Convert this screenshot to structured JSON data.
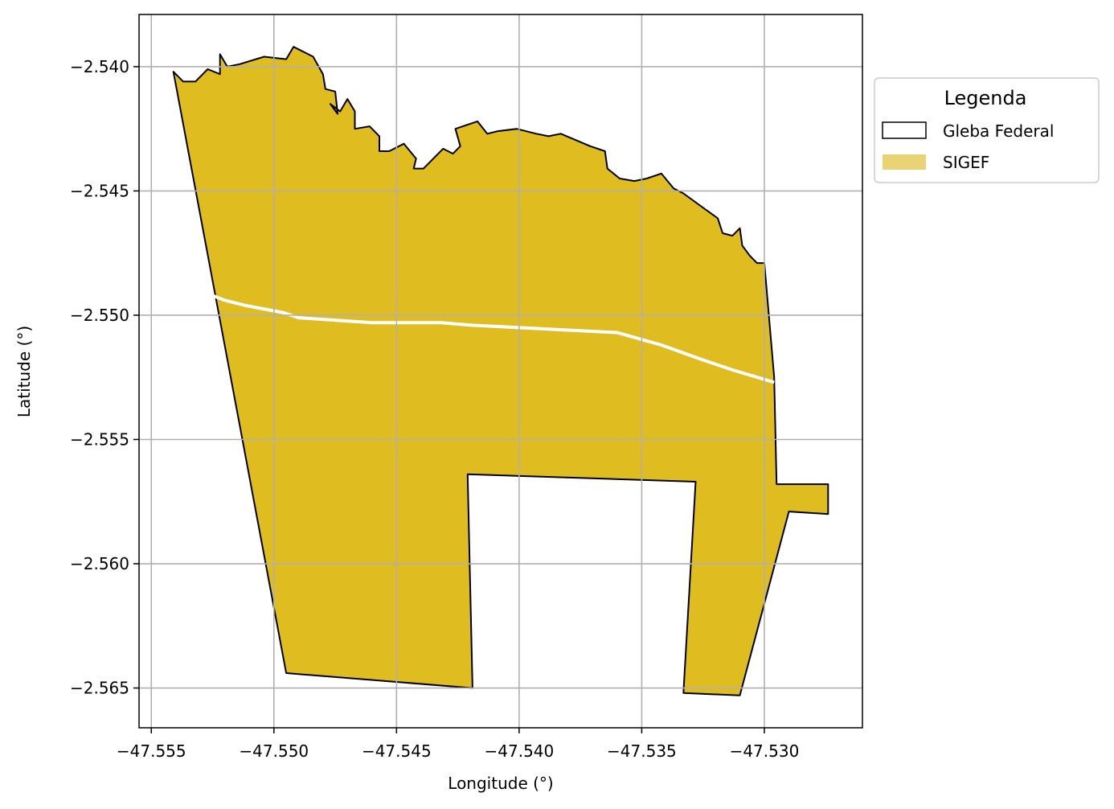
{
  "chart_data": {
    "type": "map",
    "xlabel": "Longitude (°)",
    "ylabel": "Latitude (°)",
    "xlim": [
      -47.5555,
      -47.526
    ],
    "ylim": [
      -2.5666,
      -2.5379
    ],
    "xticks": [
      -47.555,
      -47.55,
      -47.545,
      -47.54,
      -47.535,
      -47.53
    ],
    "xtick_labels": [
      "−47.555",
      "−47.550",
      "−47.545",
      "−47.540",
      "−47.535",
      "−47.530"
    ],
    "yticks": [
      -2.54,
      -2.545,
      -2.55,
      -2.555,
      -2.56,
      -2.565
    ],
    "ytick_labels": [
      "−2.540",
      "−2.545",
      "−2.550",
      "−2.555",
      "−2.560",
      "−2.565"
    ],
    "grid": true,
    "legend": {
      "title": "Legenda",
      "placement": "outside-right-top",
      "entries": [
        {
          "label": "Gleba Federal",
          "style": "outline",
          "edge": "#000000",
          "fill": "#ffffff"
        },
        {
          "label": "SIGEF",
          "style": "filled",
          "fill": "#e9d375"
        }
      ]
    },
    "layers": {
      "sigef_fill": "#dfbd20",
      "boundary_edge": "#000000",
      "divider_color": "#ffffff",
      "polygon": [
        [
          -47.5541,
          -2.5402
        ],
        [
          -47.5537,
          -2.5406
        ],
        [
          -47.5532,
          -2.5406
        ],
        [
          -47.5527,
          -2.5401
        ],
        [
          -47.5522,
          -2.5403
        ],
        [
          -47.5522,
          -2.5395
        ],
        [
          -47.5519,
          -2.54
        ],
        [
          -47.5514,
          -2.5399
        ],
        [
          -47.5504,
          -2.5396
        ],
        [
          -47.5495,
          -2.5397
        ],
        [
          -47.5492,
          -2.5392
        ],
        [
          -47.5484,
          -2.5396
        ],
        [
          -47.548,
          -2.5403
        ],
        [
          -47.5479,
          -2.5409
        ],
        [
          -47.5475,
          -2.541
        ],
        [
          -47.5474,
          -2.5419
        ],
        [
          -47.5477,
          -2.5415
        ],
        [
          -47.5473,
          -2.5418
        ],
        [
          -47.547,
          -2.5413
        ],
        [
          -47.5467,
          -2.5418
        ],
        [
          -47.5467,
          -2.5425
        ],
        [
          -47.5461,
          -2.5424
        ],
        [
          -47.5457,
          -2.5428
        ],
        [
          -47.5457,
          -2.5434
        ],
        [
          -47.5453,
          -2.5434
        ],
        [
          -47.5447,
          -2.5431
        ],
        [
          -47.5442,
          -2.5437
        ],
        [
          -47.5443,
          -2.5441
        ],
        [
          -47.5439,
          -2.5441
        ],
        [
          -47.5436,
          -2.5438
        ],
        [
          -47.5431,
          -2.5433
        ],
        [
          -47.5427,
          -2.5435
        ],
        [
          -47.5424,
          -2.5432
        ],
        [
          -47.5426,
          -2.5425
        ],
        [
          -47.5417,
          -2.5422
        ],
        [
          -47.5413,
          -2.5427
        ],
        [
          -47.5409,
          -2.5426
        ],
        [
          -47.5401,
          -2.5425
        ],
        [
          -47.5393,
          -2.5427
        ],
        [
          -47.5388,
          -2.5428
        ],
        [
          -47.5383,
          -2.5427
        ],
        [
          -47.5371,
          -2.5432
        ],
        [
          -47.5365,
          -2.5434
        ],
        [
          -47.5364,
          -2.5441
        ],
        [
          -47.5359,
          -2.5445
        ],
        [
          -47.5353,
          -2.5446
        ],
        [
          -47.5348,
          -2.5445
        ],
        [
          -47.5342,
          -2.5443
        ],
        [
          -47.5337,
          -2.5449
        ],
        [
          -47.5333,
          -2.5451
        ],
        [
          -47.5326,
          -2.5456
        ],
        [
          -47.5319,
          -2.5461
        ],
        [
          -47.5317,
          -2.5467
        ],
        [
          -47.5313,
          -2.5468
        ],
        [
          -47.531,
          -2.5465
        ],
        [
          -47.5309,
          -2.5472
        ],
        [
          -47.5306,
          -2.5476
        ],
        [
          -47.5303,
          -2.5479
        ],
        [
          -47.53,
          -2.5479
        ],
        [
          -47.5296,
          -2.5525
        ],
        [
          -47.5295,
          -2.5568
        ],
        [
          -47.5274,
          -2.5568
        ],
        [
          -47.5274,
          -2.558
        ],
        [
          -47.529,
          -2.5579
        ],
        [
          -47.531,
          -2.5653
        ],
        [
          -47.5333,
          -2.5652
        ],
        [
          -47.5328,
          -2.5567
        ],
        [
          -47.5421,
          -2.5564
        ],
        [
          -47.5419,
          -2.565
        ],
        [
          -47.5495,
          -2.5644
        ]
      ],
      "divider": [
        [
          -47.5528,
          -2.5491
        ],
        [
          -47.552,
          -2.5494
        ],
        [
          -47.5512,
          -2.5496
        ],
        [
          -47.5496,
          -2.5499
        ],
        [
          -47.549,
          -2.5501
        ],
        [
          -47.546,
          -2.5503
        ],
        [
          -47.545,
          -2.5503
        ],
        [
          -47.5432,
          -2.5503
        ],
        [
          -47.542,
          -2.5504
        ],
        [
          -47.54,
          -2.5505
        ],
        [
          -47.538,
          -2.5506
        ],
        [
          -47.536,
          -2.5507
        ],
        [
          -47.5342,
          -2.5512
        ],
        [
          -47.5325,
          -2.5518
        ],
        [
          -47.5313,
          -2.5522
        ],
        [
          -47.5296,
          -2.5527
        ]
      ]
    }
  }
}
